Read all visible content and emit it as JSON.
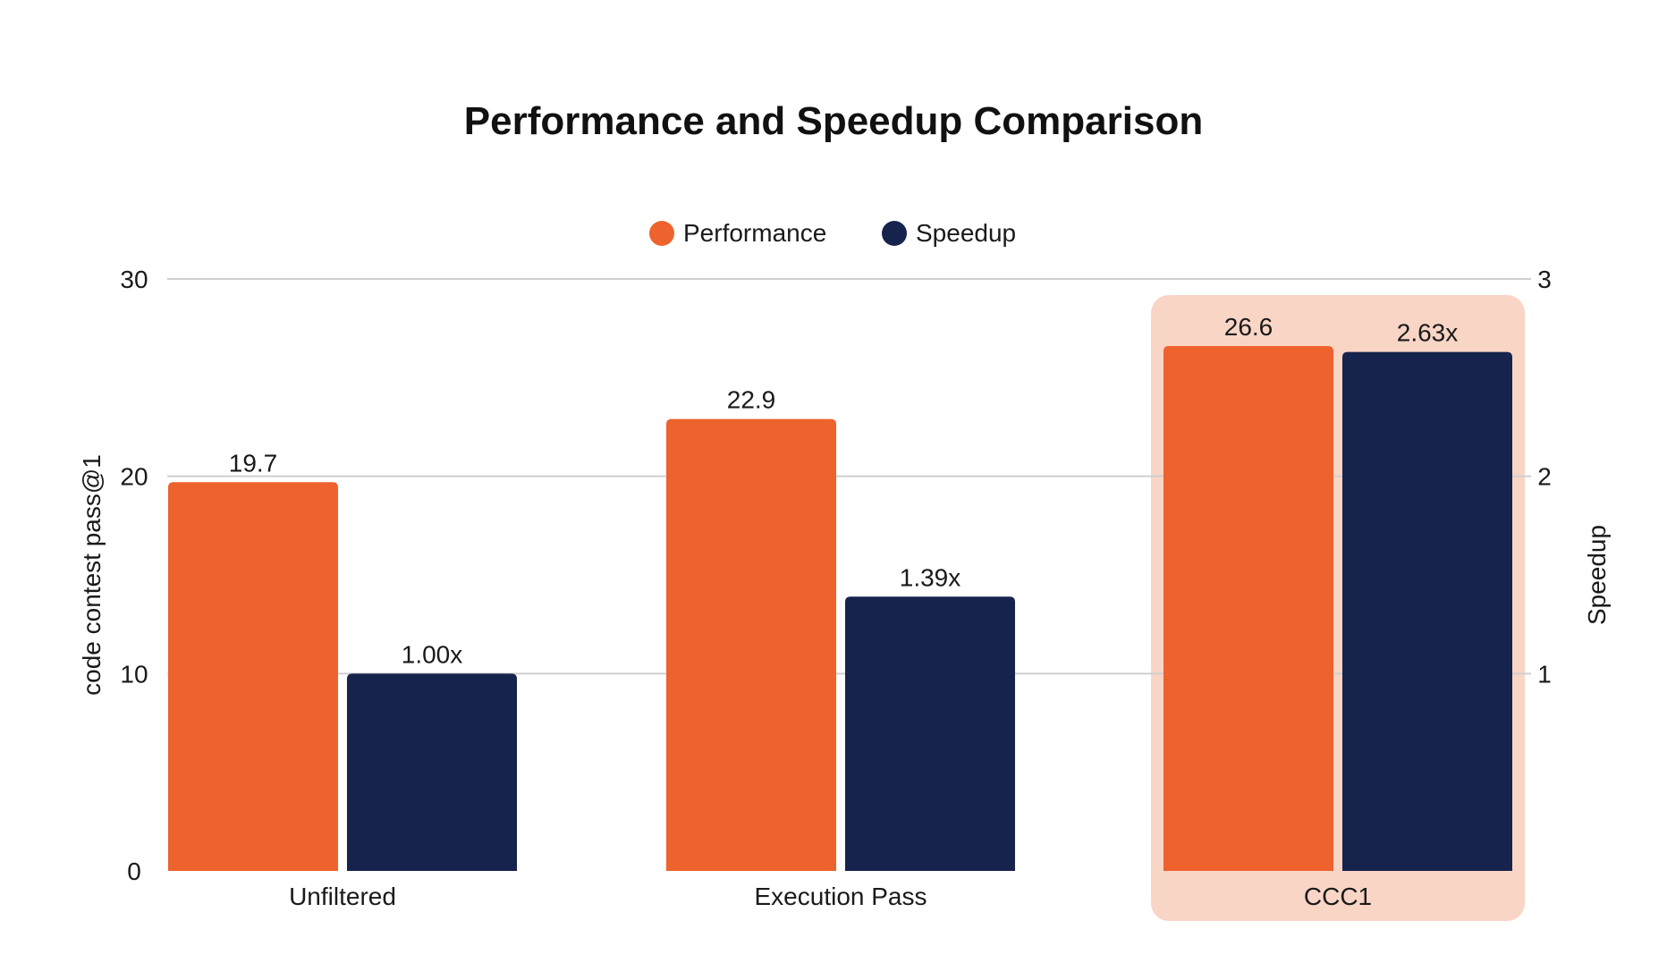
{
  "chart_data": {
    "type": "bar",
    "title": "Performance and Speedup Comparison",
    "categories": [
      "Unfiltered",
      "Execution Pass",
      "CCC1"
    ],
    "highlighted_category": "CCC1",
    "series": [
      {
        "name": "Performance",
        "axis": "left",
        "values": [
          19.7,
          22.9,
          26.6
        ],
        "labels": [
          "19.7",
          "22.9",
          "26.6"
        ],
        "color": "#ee622d"
      },
      {
        "name": "Speedup",
        "axis": "right",
        "values": [
          1.0,
          1.39,
          2.63
        ],
        "labels": [
          "1.00x",
          "1.39x",
          "2.63x"
        ],
        "color": "#16234d"
      }
    ],
    "ylabel": "code contest pass@1",
    "y2label": "Speedup",
    "ylim": [
      0,
      30
    ],
    "y2lim": [
      0,
      3
    ],
    "yticks": [
      "0",
      "10",
      "20",
      "30"
    ],
    "y2ticks": [
      "1",
      "2",
      "3"
    ],
    "grid": true,
    "legend_position": "top-center",
    "highlight_color": "#f9d5c6"
  }
}
